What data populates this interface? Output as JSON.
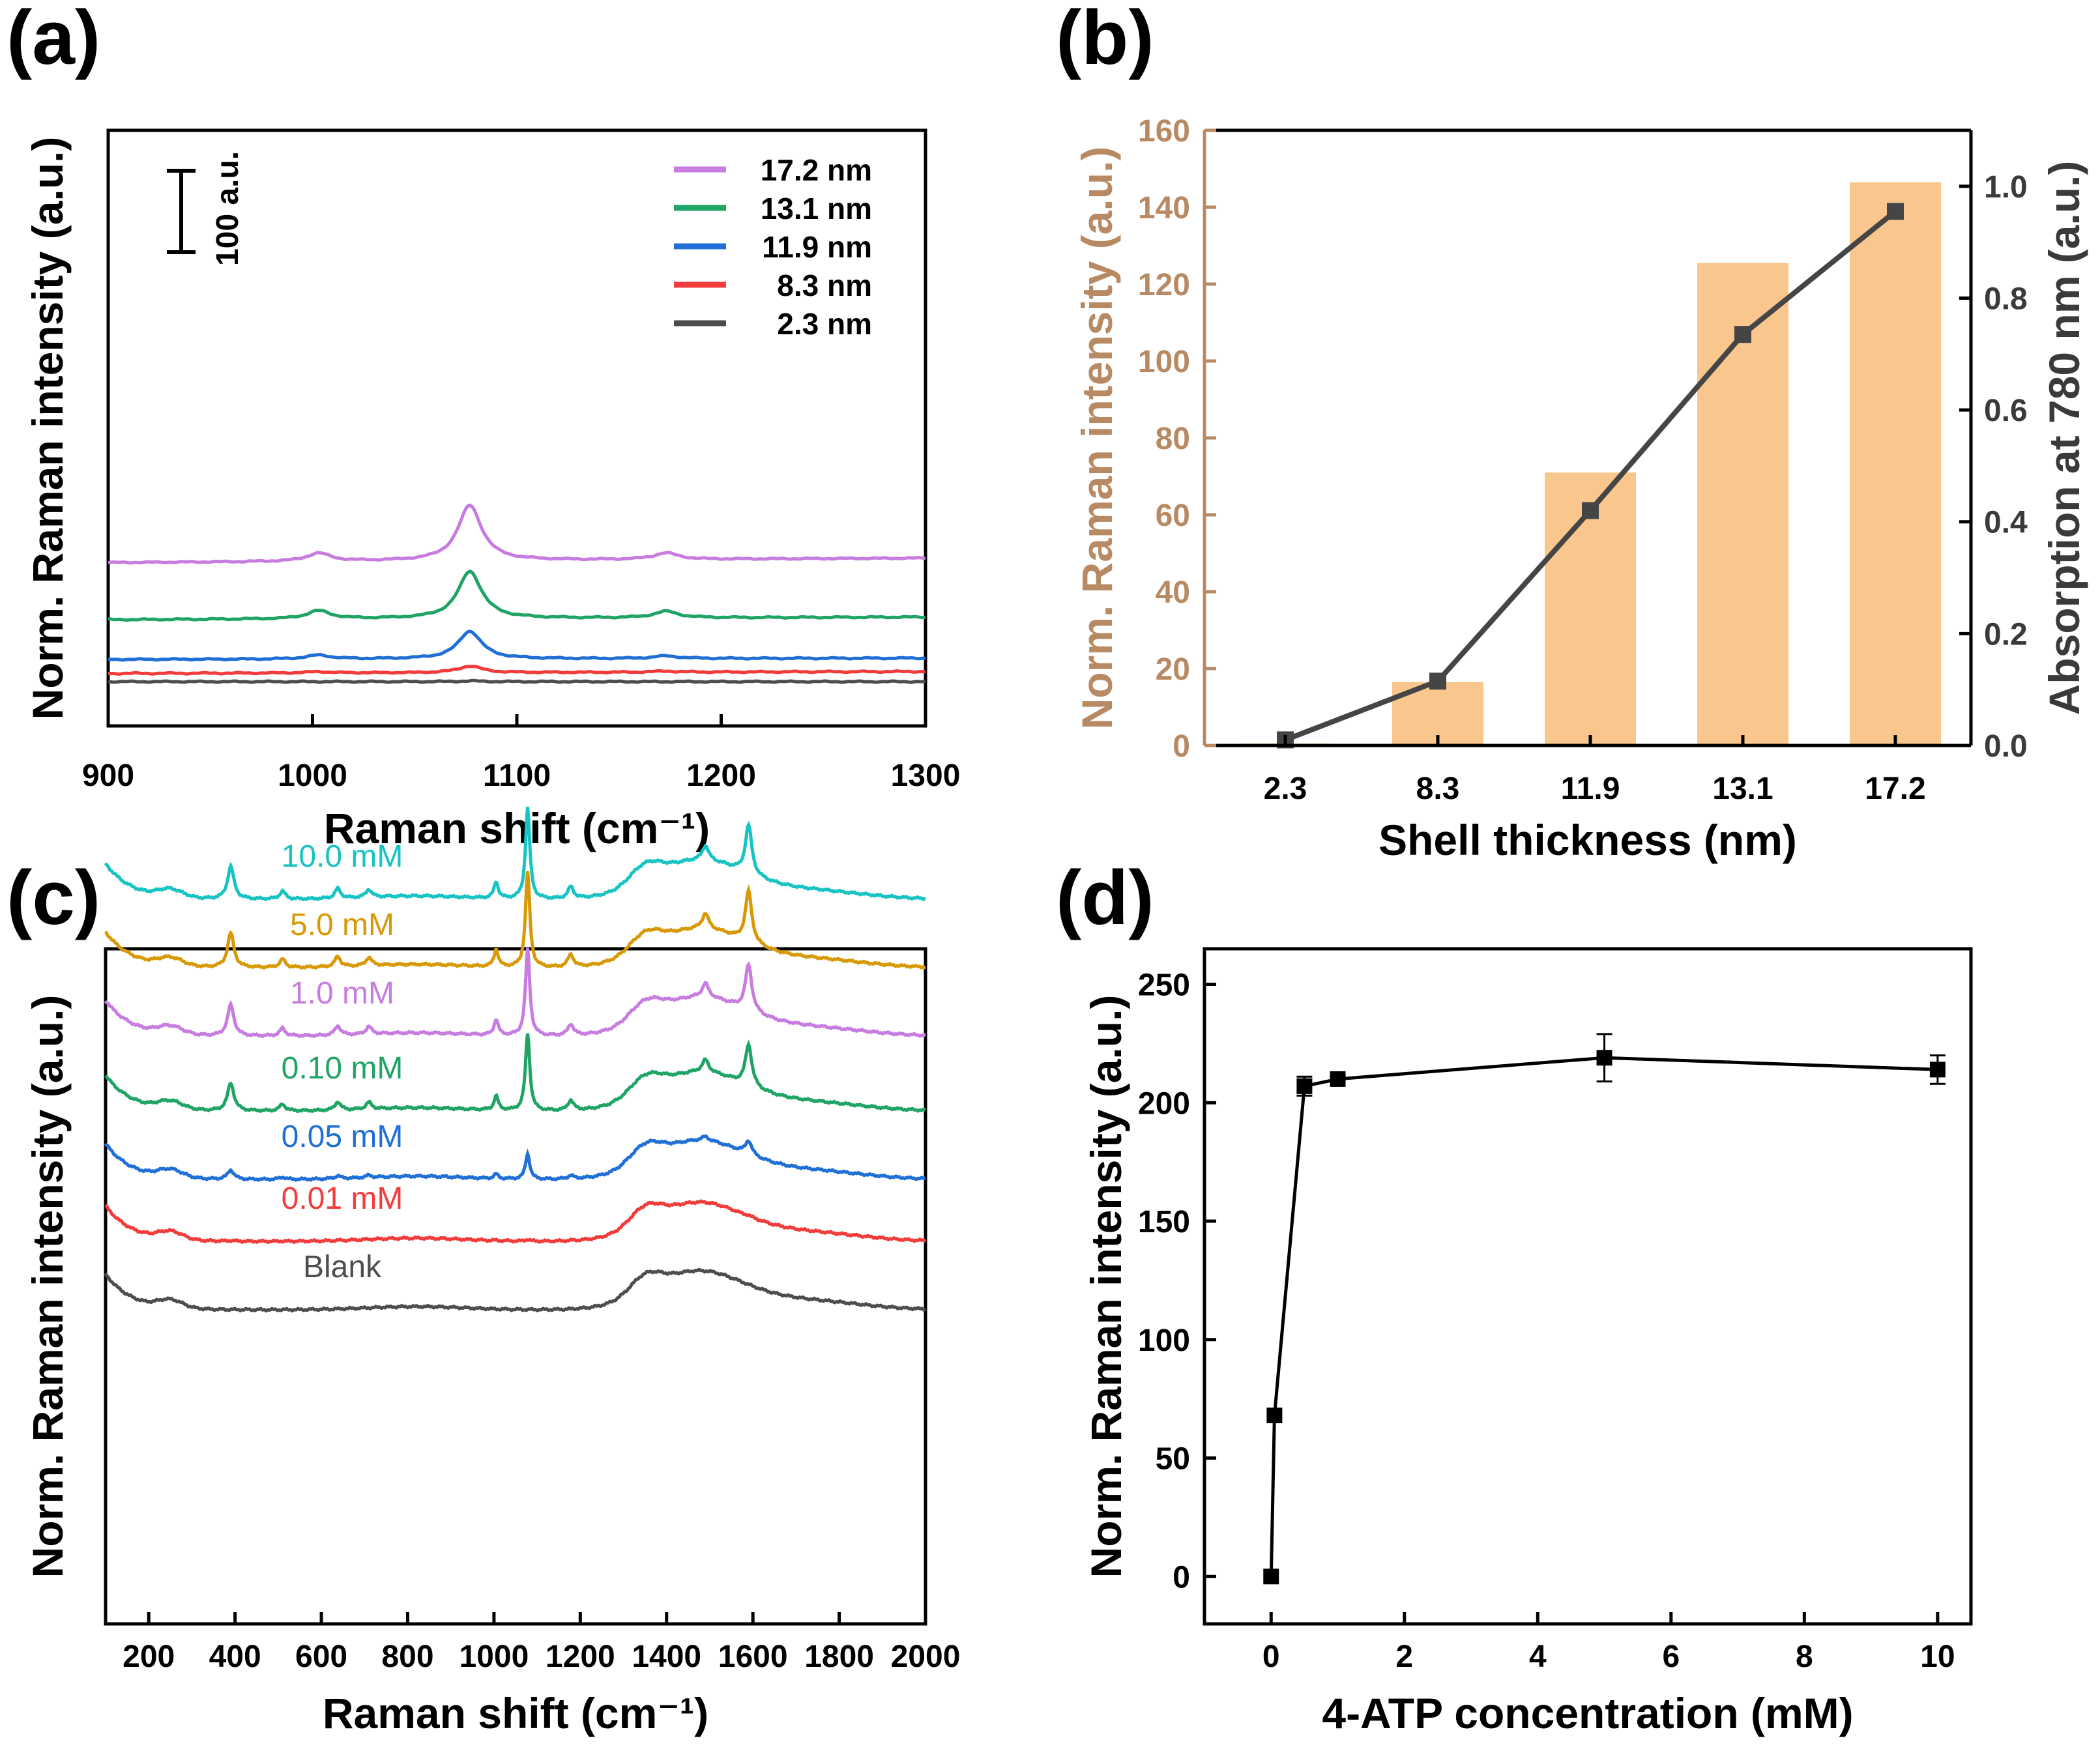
{
  "chart_data": [
    {
      "panel": "(a)",
      "type": "line",
      "xlabel": "Raman shift (cm⁻¹)",
      "ylabel": "Norm. Raman intensity (a.u.)",
      "xlim": [
        900,
        1300
      ],
      "xticks": [
        900,
        1000,
        1100,
        1200,
        1300
      ],
      "scale_bar_label": "100 a.u.",
      "scale_bar_value": 100,
      "legend_position": "top-right",
      "peaks_cm": [
        1003,
        1077,
        1173
      ],
      "series": [
        {
          "name": "17.2 nm",
          "color": "#c77ce0",
          "offset": 365,
          "peak_heights": [
            25,
            170,
            20
          ],
          "slope": 14
        },
        {
          "name": "13.1 nm",
          "color": "#1fa465",
          "offset": 190,
          "peak_heights": [
            25,
            145,
            20
          ],
          "slope": 8
        },
        {
          "name": "11.9 nm",
          "color": "#1f6fd6",
          "offset": 68,
          "peak_heights": [
            12,
            85,
            8
          ],
          "slope": 4
        },
        {
          "name": "8.3 nm",
          "color": "#f23b3b",
          "offset": 25,
          "peak_heights": [
            4,
            20,
            3
          ],
          "slope": 6
        },
        {
          "name": "2.3 nm",
          "color": "#4d4d4d",
          "offset": 0,
          "peak_heights": [
            0,
            2,
            0
          ],
          "slope": 0
        }
      ]
    },
    {
      "panel": "(b)",
      "type": "bar+line",
      "xlabel": "Shell thickness (nm)",
      "ylabel_left": "Norm. Raman intensity (a.u.)",
      "ylabel_right": "Absorption at 780 nm (a.u.)",
      "categories": [
        "2.3",
        "8.3",
        "11.9",
        "13.1",
        "17.2"
      ],
      "bar_values": [
        0.5,
        16.5,
        71,
        125.5,
        146.5
      ],
      "line_values": [
        0.01,
        0.115,
        0.42,
        0.735,
        0.955
      ],
      "ylim_left": [
        0,
        160
      ],
      "yticks_left": [
        0,
        20,
        40,
        60,
        80,
        100,
        120,
        140,
        160
      ],
      "ylim_right": [
        0,
        1.1
      ],
      "yticks_right": [
        "0.0",
        "0.2",
        "0.4",
        "0.6",
        "0.8",
        "1.0"
      ],
      "bar_color": "#f9c68e",
      "line_color": "#454545",
      "left_axis_color": "#b88a63"
    },
    {
      "panel": "(c)",
      "type": "line",
      "xlabel": "Raman shift (cm⁻¹)",
      "ylabel": "Norm. Raman intensity (a.u.)",
      "xlim": [
        100,
        2000
      ],
      "xticks": [
        200,
        400,
        600,
        800,
        1000,
        1200,
        1400,
        1600,
        1800,
        2000
      ],
      "series": [
        {
          "name": "10.0 mM",
          "color": "#17c3c3",
          "offset": 630,
          "scale": 1.0
        },
        {
          "name": "5.0 mM",
          "color": "#d79a06",
          "offset": 525,
          "scale": 1.05
        },
        {
          "name": "1.0 mM",
          "color": "#c77ce0",
          "offset": 420,
          "scale": 0.95
        },
        {
          "name": "0.10 mM",
          "color": "#1fa465",
          "offset": 305,
          "scale": 0.85
        },
        {
          "name": "0.05 mM",
          "color": "#1f6fd6",
          "offset": 200,
          "scale": 0.28
        },
        {
          "name": "0.01 mM",
          "color": "#f23b3b",
          "offset": 105,
          "scale": 0.02
        },
        {
          "name": "Blank",
          "color": "#4d4d4d",
          "offset": 0,
          "scale": 0.0
        }
      ]
    },
    {
      "panel": "(d)",
      "type": "scatter",
      "xlabel": "4-ATP concentration (mM)",
      "ylabel": "Norm. Raman intensity (a.u.)",
      "xlim": [
        -1,
        10.5
      ],
      "ylim": [
        -20,
        265
      ],
      "xticks": [
        0,
        2,
        4,
        6,
        8,
        10
      ],
      "yticks": [
        0,
        50,
        100,
        150,
        200,
        250
      ],
      "x": [
        0,
        0.05,
        0.5,
        1.0,
        5.0,
        10.0
      ],
      "y": [
        0,
        68,
        207,
        210,
        219,
        214
      ],
      "error": [
        0,
        0,
        4,
        0,
        10,
        6
      ],
      "color": "#000000"
    }
  ]
}
